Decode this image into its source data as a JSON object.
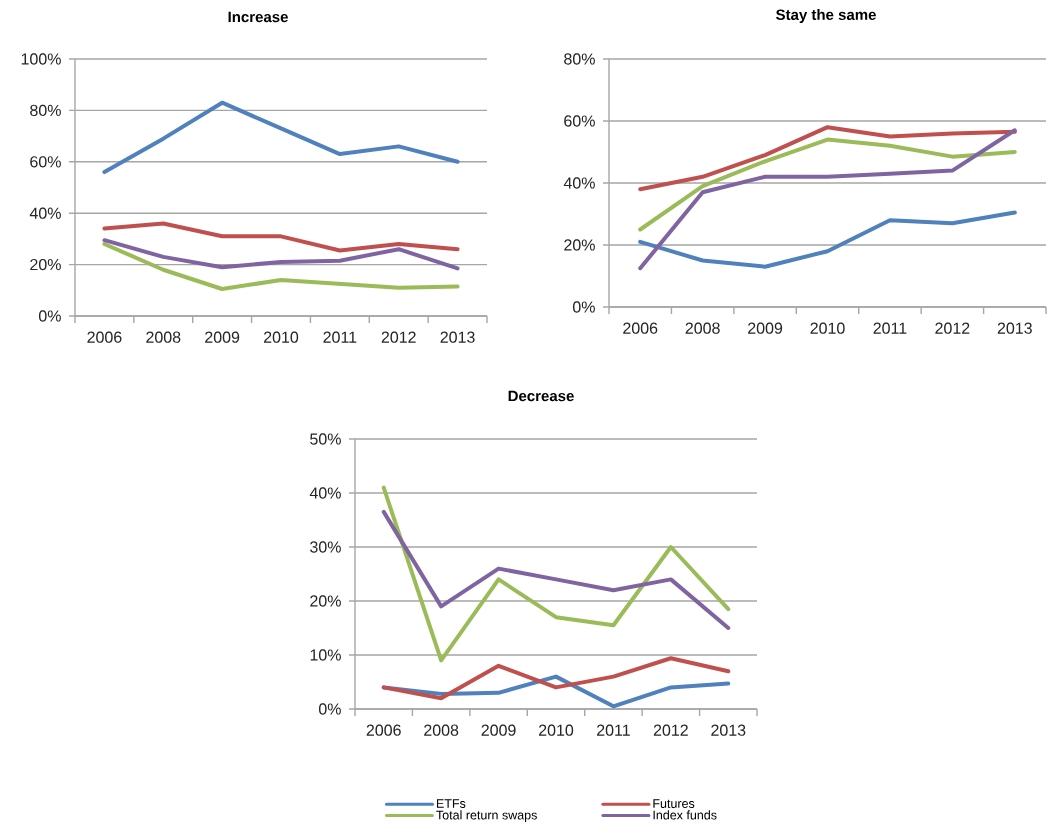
{
  "chart_data": [
    {
      "type": "line",
      "title": "Increase",
      "categories": [
        "2006",
        "2008",
        "2009",
        "2010",
        "2011",
        "2012",
        "2013"
      ],
      "series": [
        {
          "color": "#4f81bd",
          "values": [
            56,
            69,
            83,
            73,
            63,
            66,
            60
          ]
        },
        {
          "color": "#c0504d",
          "values": [
            34,
            36,
            31,
            31,
            25.5,
            28,
            26
          ]
        },
        {
          "color": "#9bbb59",
          "values": [
            28,
            18,
            10.5,
            14,
            12.5,
            11,
            11.5
          ]
        },
        {
          "color": "#8064a2",
          "values": [
            29.5,
            23,
            19,
            21,
            21.5,
            26,
            18.5
          ]
        }
      ],
      "ylim": [
        0,
        100
      ],
      "yticks": [
        {
          "value": 0,
          "label": "0%"
        },
        {
          "value": 20,
          "label": "20%"
        },
        {
          "value": 40,
          "label": "40%"
        },
        {
          "value": 60,
          "label": "60%"
        },
        {
          "value": 80,
          "label": "80%"
        },
        {
          "value": 100,
          "label": "100%"
        }
      ],
      "grid": "y"
    },
    {
      "type": "line",
      "title": "Stay the same",
      "categories": [
        "2006",
        "2008",
        "2009",
        "2010",
        "2011",
        "2012",
        "2013"
      ],
      "series": [
        {
          "color": "#4f81bd",
          "values": [
            21,
            15,
            13,
            18,
            28,
            27,
            30.5
          ]
        },
        {
          "color": "#c0504d",
          "values": [
            38,
            42,
            49,
            58,
            55,
            56,
            56.5
          ]
        },
        {
          "color": "#9bbb59",
          "values": [
            25,
            39,
            47,
            54,
            52,
            48.5,
            50
          ]
        },
        {
          "color": "#8064a2",
          "values": [
            12.5,
            37,
            42,
            42,
            43,
            44,
            57
          ]
        }
      ],
      "ylim": [
        0,
        80
      ],
      "yticks": [
        {
          "value": 0,
          "label": "0%"
        },
        {
          "value": 20,
          "label": "20%"
        },
        {
          "value": 40,
          "label": "40%"
        },
        {
          "value": 60,
          "label": "60%"
        },
        {
          "value": 80,
          "label": "80%"
        }
      ],
      "grid": "y"
    },
    {
      "type": "line",
      "title": "Decrease",
      "categories": [
        "2006",
        "2008",
        "2009",
        "2010",
        "2011",
        "2012",
        "2013"
      ],
      "series": [
        {
          "name": "ETFs",
          "color": "#4f81bd",
          "values": [
            4,
            2.8,
            3,
            6,
            0.5,
            4,
            4.7
          ]
        },
        {
          "name": "Futures",
          "color": "#c0504d",
          "values": [
            4,
            2,
            8,
            4,
            6,
            9.4,
            7
          ]
        },
        {
          "name": "Total return swaps",
          "color": "#9bbb59",
          "values": [
            41,
            9,
            24,
            17,
            15.5,
            30,
            18.5
          ]
        },
        {
          "name": "Index funds",
          "color": "#8064a2",
          "values": [
            36.5,
            19,
            26,
            24,
            22,
            24,
            15
          ]
        }
      ],
      "ylim": [
        0,
        50
      ],
      "yticks": [
        {
          "value": 0,
          "label": "0%"
        },
        {
          "value": 10,
          "label": "10%"
        },
        {
          "value": 20,
          "label": "20%"
        },
        {
          "value": 30,
          "label": "30%"
        },
        {
          "value": 40,
          "label": "40%"
        },
        {
          "value": 50,
          "label": "50%"
        }
      ],
      "grid": "y",
      "legend": "bottom"
    }
  ]
}
